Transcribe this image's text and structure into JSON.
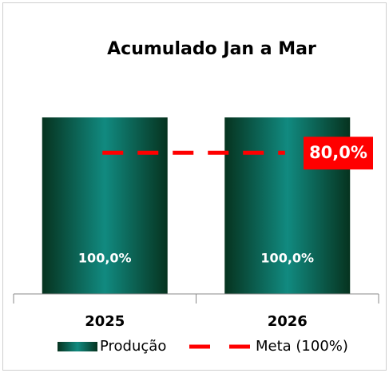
{
  "chart_data": {
    "type": "bar",
    "title": "Acumulado Jan a Mar",
    "categories": [
      "2025",
      "2026"
    ],
    "ylim": [
      0,
      100
    ],
    "series": [
      {
        "name": "Produção",
        "color": "#0f8a80",
        "values": [
          100,
          100
        ],
        "value_labels": [
          "100,0%",
          "100,0%"
        ]
      },
      {
        "name": "Meta (100%)",
        "type": "line",
        "color": "#ff0000",
        "values": [
          80,
          80
        ],
        "value_labels": [
          null,
          "80,0%"
        ]
      }
    ],
    "legend": "bottom"
  }
}
